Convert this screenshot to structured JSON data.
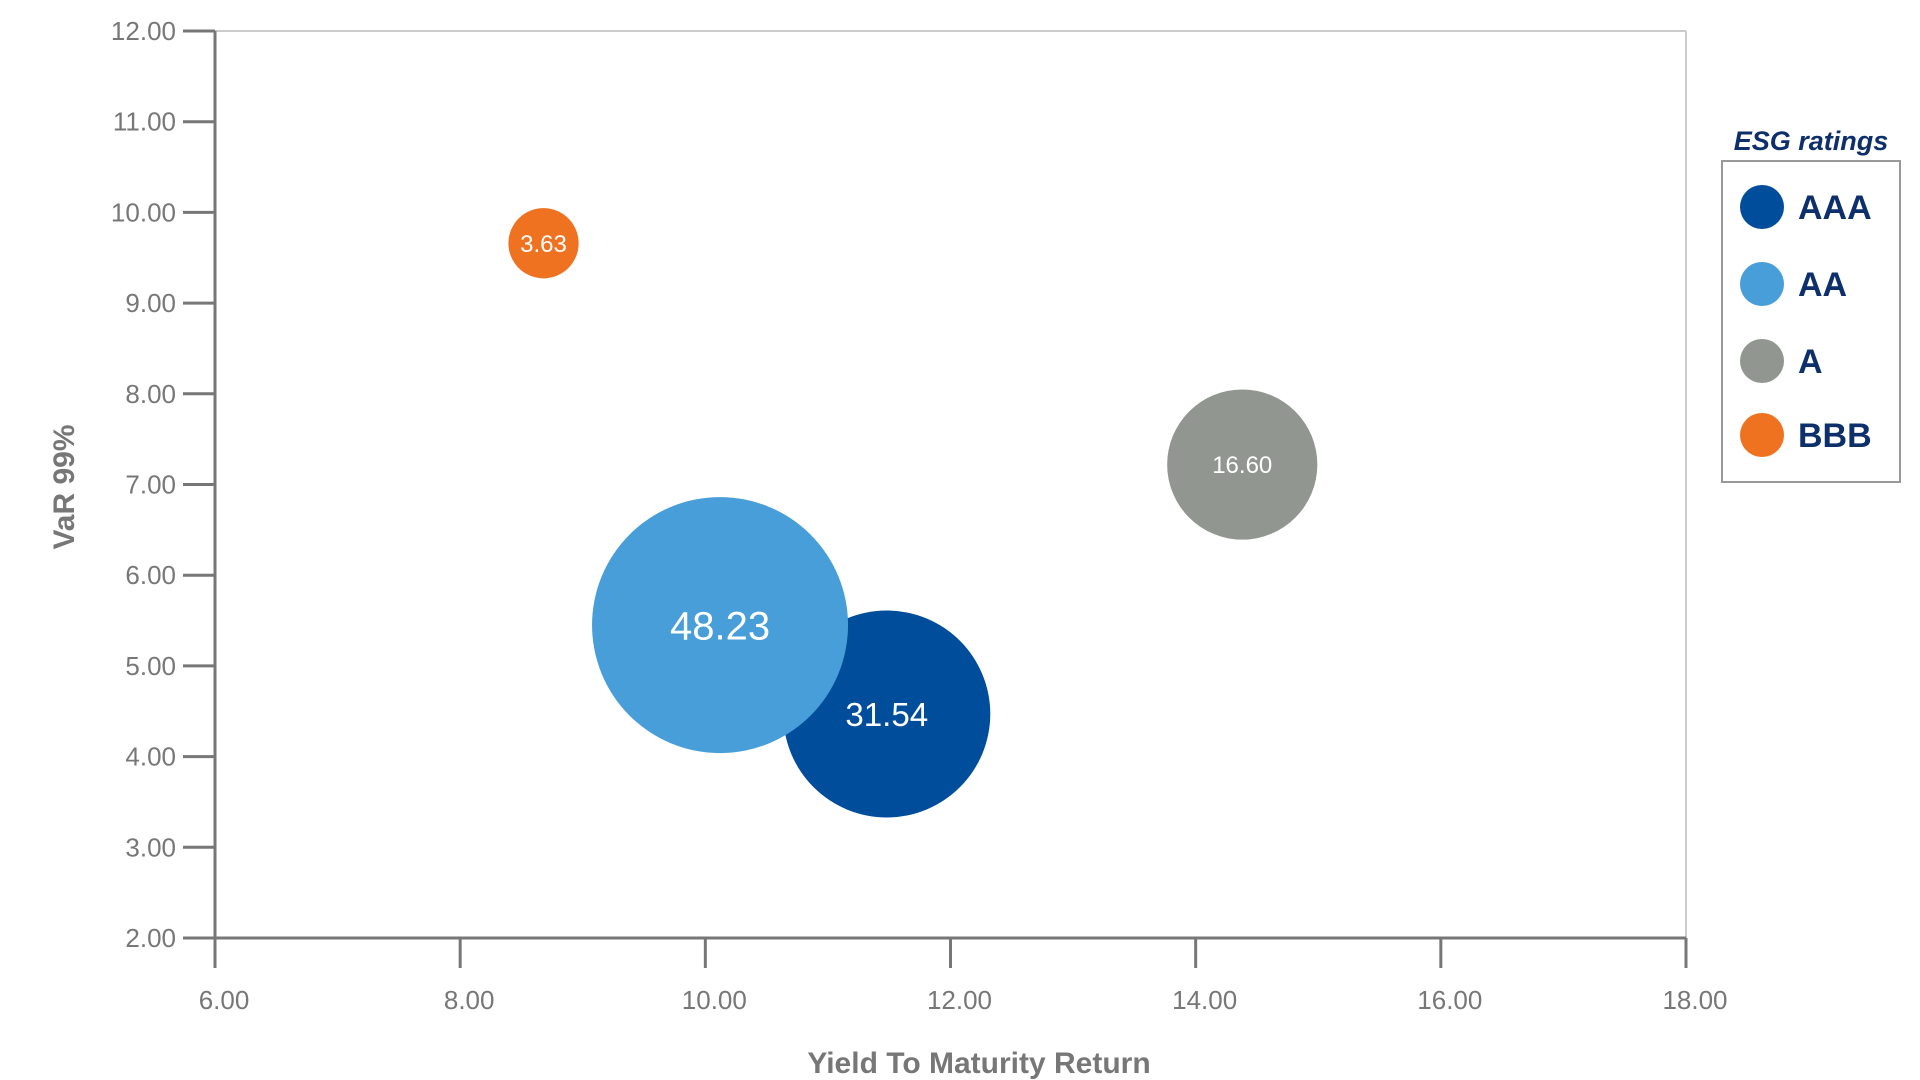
{
  "chart_data": {
    "type": "scatter",
    "subtype": "bubble",
    "xlabel": "Yield To Maturity Return",
    "ylabel": "VaR 99%",
    "xlim": [
      6,
      18
    ],
    "ylim": [
      2,
      12
    ],
    "x_ticks": [
      "6.00",
      "8.00",
      "10.00",
      "12.00",
      "14.00",
      "16.00",
      "18.00"
    ],
    "y_ticks": [
      "2.00",
      "3.00",
      "4.00",
      "5.00",
      "6.00",
      "7.00",
      "8.00",
      "9.00",
      "10.00",
      "11.00",
      "12.00"
    ],
    "grid": false,
    "legend": {
      "title": "ESG ratings",
      "position": "right"
    },
    "series": [
      {
        "name": "AAA",
        "color": "#004d9b",
        "x": 11.48,
        "y": 4.47,
        "size": 31.54,
        "label": "31.54"
      },
      {
        "name": "AA",
        "color": "#479ed8",
        "x": 10.12,
        "y": 5.45,
        "size": 48.23,
        "label": "48.23"
      },
      {
        "name": "A",
        "color": "#929691",
        "x": 14.38,
        "y": 7.22,
        "size": 16.6,
        "label": "16.60"
      },
      {
        "name": "BBB",
        "color": "#ee721f",
        "x": 8.68,
        "y": 9.66,
        "size": 3.63,
        "label": "3.63"
      }
    ]
  }
}
